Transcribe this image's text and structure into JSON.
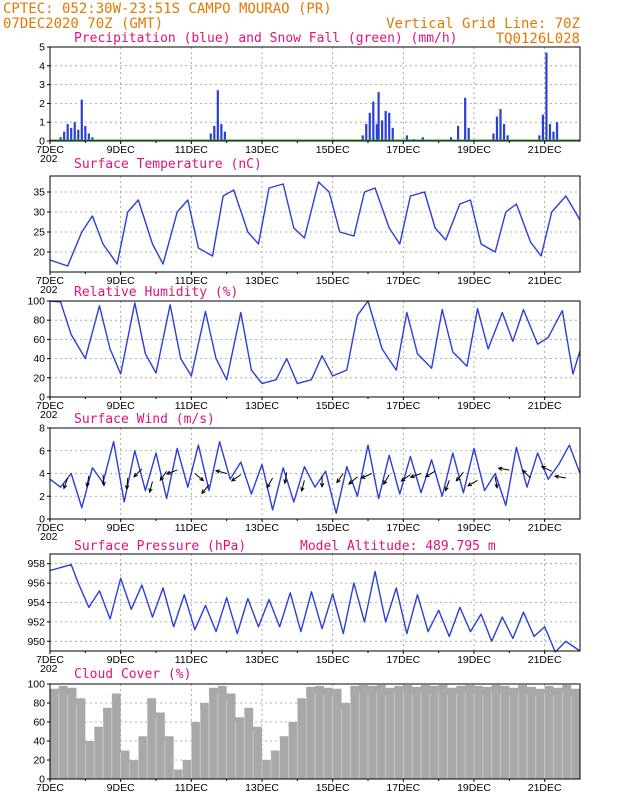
{
  "header": {
    "line1": "CPTEC:  052:30W-23:51S  CAMPO MOURAO (PR)",
    "line2": "07DEC2020 70Z (GMT)",
    "grid_note": "Vertical Grid Line: 70Z",
    "code": "TQ0126L028"
  },
  "x_axis": {
    "start_label": "7DEC",
    "labels": [
      "7DEC",
      "9DEC",
      "11DEC",
      "13DEC",
      "15DEC",
      "17DEC",
      "19DEC",
      "21DEC"
    ],
    "label_days": [
      0,
      2,
      4,
      6,
      8,
      10,
      12,
      14
    ],
    "range_days": [
      0,
      15
    ],
    "year_stub": "202"
  },
  "colors": {
    "line": "#2a3fd8",
    "precip": "#2a3fd8",
    "snow": "#22aa22",
    "cloud": "#a8a8a8",
    "title": "#e0127a",
    "header": "#e07a00",
    "grid": "#999999"
  },
  "chart_data": [
    {
      "id": "precip",
      "type": "bar",
      "title": "Precipitation (blue) and Snow Fall (green) (mm/h)",
      "ylim": [
        0,
        5
      ],
      "yticks": [
        0,
        1,
        2,
        3,
        4,
        5
      ],
      "bars": [
        [
          0.3,
          0.2
        ],
        [
          0.4,
          0.5
        ],
        [
          0.5,
          0.9
        ],
        [
          0.6,
          0.7
        ],
        [
          0.7,
          1.0
        ],
        [
          0.8,
          0.6
        ],
        [
          0.9,
          2.2
        ],
        [
          1.0,
          0.8
        ],
        [
          1.1,
          0.4
        ],
        [
          1.2,
          0.2
        ],
        [
          4.55,
          0.4
        ],
        [
          4.65,
          0.8
        ],
        [
          4.75,
          2.7
        ],
        [
          4.85,
          0.9
        ],
        [
          4.95,
          0.5
        ],
        [
          8.85,
          0.3
        ],
        [
          8.95,
          0.9
        ],
        [
          9.05,
          1.5
        ],
        [
          9.15,
          2.1
        ],
        [
          9.25,
          0.9
        ],
        [
          9.3,
          2.6
        ],
        [
          9.4,
          1.1
        ],
        [
          9.5,
          1.6
        ],
        [
          9.6,
          1.5
        ],
        [
          9.7,
          0.7
        ],
        [
          10.1,
          0.3
        ],
        [
          10.3,
          0.1
        ],
        [
          10.55,
          0.2
        ],
        [
          11.35,
          0.2
        ],
        [
          11.55,
          0.8
        ],
        [
          11.75,
          2.3
        ],
        [
          11.85,
          0.7
        ],
        [
          12.55,
          0.4
        ],
        [
          12.65,
          1.3
        ],
        [
          12.75,
          1.7
        ],
        [
          12.85,
          0.9
        ],
        [
          12.95,
          0.3
        ],
        [
          13.85,
          0.3
        ],
        [
          13.95,
          1.4
        ],
        [
          14.05,
          4.7
        ],
        [
          14.15,
          0.9
        ],
        [
          14.25,
          0.5
        ],
        [
          14.35,
          1.0
        ]
      ],
      "snow": []
    },
    {
      "id": "temp",
      "type": "line",
      "title": "Surface Temperature (nC)",
      "ylim": [
        15,
        39
      ],
      "yticks": [
        20,
        25,
        30,
        35
      ],
      "x": [
        0.0,
        0.5,
        0.9,
        1.2,
        1.5,
        1.9,
        2.2,
        2.5,
        2.9,
        3.2,
        3.6,
        3.9,
        4.2,
        4.6,
        4.9,
        5.2,
        5.6,
        5.9,
        6.2,
        6.6,
        6.9,
        7.2,
        7.6,
        7.9,
        8.2,
        8.6,
        8.9,
        9.2,
        9.6,
        9.9,
        10.2,
        10.6,
        10.9,
        11.2,
        11.6,
        11.9,
        12.2,
        12.6,
        12.9,
        13.2,
        13.6,
        13.9,
        14.2,
        14.6,
        15.0
      ],
      "y": [
        18,
        16.5,
        25,
        29,
        22,
        17,
        30,
        33,
        22,
        17,
        30,
        33,
        21,
        19,
        34,
        35.5,
        25,
        22,
        36,
        37,
        26,
        23.5,
        37.5,
        35,
        25,
        24,
        35,
        36,
        26,
        22,
        34,
        35,
        26,
        23,
        32,
        33,
        22,
        20,
        30,
        32,
        22.5,
        19,
        30,
        34,
        28
      ],
      "series_name": "temperature"
    },
    {
      "id": "rh",
      "type": "line",
      "title": "Relative Humidity (%)",
      "ylim": [
        0,
        100
      ],
      "yticks": [
        0,
        20,
        40,
        60,
        80,
        100
      ],
      "x": [
        0.0,
        0.3,
        0.6,
        1.0,
        1.4,
        1.7,
        2.0,
        2.4,
        2.7,
        3.0,
        3.4,
        3.7,
        4.0,
        4.4,
        4.7,
        5.0,
        5.4,
        5.7,
        6.0,
        6.4,
        6.7,
        7.0,
        7.4,
        7.7,
        8.0,
        8.4,
        8.7,
        9.0,
        9.4,
        9.8,
        10.1,
        10.4,
        10.8,
        11.1,
        11.4,
        11.8,
        12.1,
        12.4,
        12.8,
        13.1,
        13.4,
        13.8,
        14.1,
        14.5,
        14.8,
        15.0
      ],
      "y": [
        100,
        99,
        65,
        40,
        95,
        50,
        24,
        98,
        45,
        25,
        96,
        40,
        22,
        89,
        40,
        18,
        88,
        28,
        14,
        18,
        40,
        14,
        18,
        43,
        22,
        28,
        85,
        100,
        50,
        28,
        88,
        45,
        30,
        91,
        47,
        32,
        92,
        50,
        88,
        58,
        91,
        55,
        62,
        90,
        24,
        48
      ],
      "series_name": "relative humidity"
    },
    {
      "id": "wind",
      "type": "line",
      "title": "Surface Wind (m/s)",
      "ylim": [
        0,
        8
      ],
      "yticks": [
        0,
        2,
        4,
        6,
        8
      ],
      "x": [
        0.0,
        0.3,
        0.6,
        0.9,
        1.2,
        1.5,
        1.8,
        2.1,
        2.4,
        2.7,
        3.0,
        3.3,
        3.6,
        3.9,
        4.2,
        4.5,
        4.8,
        5.1,
        5.4,
        5.7,
        6.0,
        6.3,
        6.6,
        6.9,
        7.2,
        7.5,
        7.8,
        8.1,
        8.4,
        8.7,
        9.0,
        9.3,
        9.6,
        9.9,
        10.2,
        10.5,
        10.8,
        11.1,
        11.4,
        11.7,
        12.0,
        12.3,
        12.6,
        12.9,
        13.2,
        13.5,
        13.8,
        14.1,
        14.4,
        14.7,
        15.0
      ],
      "y": [
        3.5,
        2.8,
        4.0,
        1.0,
        4.5,
        3.2,
        6.8,
        1.5,
        6.0,
        2.5,
        5.8,
        1.8,
        6.2,
        2.8,
        6.5,
        2.5,
        6.8,
        3.5,
        5.0,
        2.2,
        4.8,
        0.8,
        4.5,
        1.5,
        4.6,
        2.8,
        4.2,
        0.5,
        4.6,
        2.0,
        6.5,
        1.8,
        5.6,
        2.2,
        5.5,
        2.3,
        5.2,
        2.0,
        5.8,
        2.3,
        6.2,
        2.5,
        4.0,
        1.2,
        6.3,
        2.8,
        5.8,
        3.5,
        4.8,
        6.5,
        4.0
      ],
      "arrows": [
        [
          0.5,
          3.6,
          250
        ],
        [
          1.1,
          3.8,
          260
        ],
        [
          1.5,
          3.9,
          275
        ],
        [
          2.2,
          3.6,
          265
        ],
        [
          2.6,
          4.4,
          225
        ],
        [
          2.9,
          3.3,
          255
        ],
        [
          3.3,
          4.2,
          235
        ],
        [
          3.6,
          4.3,
          200
        ],
        [
          4.1,
          4.0,
          320
        ],
        [
          4.5,
          3.0,
          230
        ],
        [
          5.0,
          4.0,
          165
        ],
        [
          5.4,
          3.9,
          215
        ],
        [
          6.3,
          3.6,
          240
        ],
        [
          6.7,
          4.1,
          260
        ],
        [
          7.2,
          3.4,
          255
        ],
        [
          7.7,
          3.8,
          270
        ],
        [
          8.3,
          4.0,
          235
        ],
        [
          8.7,
          3.7,
          220
        ],
        [
          9.1,
          4.0,
          205
        ],
        [
          9.6,
          3.9,
          240
        ],
        [
          10.2,
          3.9,
          215
        ],
        [
          10.5,
          4.0,
          200
        ],
        [
          10.9,
          4.2,
          210
        ],
        [
          11.3,
          3.4,
          250
        ],
        [
          11.7,
          4.1,
          230
        ],
        [
          12.1,
          3.4,
          210
        ],
        [
          12.6,
          3.7,
          280
        ],
        [
          13.0,
          4.3,
          170
        ],
        [
          13.6,
          3.6,
          135
        ],
        [
          14.2,
          4.2,
          155
        ],
        [
          14.6,
          3.6,
          170
        ]
      ],
      "series_name": "wind speed"
    },
    {
      "id": "pressure",
      "type": "line",
      "title": "Surface Pressure (hPa)",
      "annotation": "Model Altitude: 489.795 m",
      "ylim": [
        949,
        959
      ],
      "yticks": [
        950,
        952,
        954,
        956,
        958
      ],
      "x": [
        0.0,
        0.3,
        0.6,
        0.8,
        1.1,
        1.4,
        1.7,
        2.0,
        2.3,
        2.6,
        2.9,
        3.2,
        3.5,
        3.8,
        4.1,
        4.4,
        4.7,
        5.0,
        5.3,
        5.6,
        5.9,
        6.2,
        6.5,
        6.8,
        7.1,
        7.4,
        7.7,
        8.0,
        8.3,
        8.6,
        8.9,
        9.2,
        9.5,
        9.8,
        10.1,
        10.4,
        10.7,
        11.0,
        11.3,
        11.6,
        11.9,
        12.2,
        12.5,
        12.8,
        13.1,
        13.4,
        13.7,
        14.0,
        14.3,
        14.6,
        15.0
      ],
      "y": [
        957.3,
        957.6,
        957.9,
        956.0,
        953.5,
        955.2,
        952.3,
        956.5,
        953.3,
        955.8,
        952.5,
        955.5,
        951.5,
        954.8,
        951.2,
        953.7,
        951.0,
        954.5,
        950.8,
        954.4,
        951.5,
        954.3,
        951.5,
        955.0,
        951.0,
        955.1,
        951.3,
        954.9,
        950.8,
        956.0,
        952.0,
        957.2,
        952.0,
        955.5,
        950.8,
        954.8,
        951.0,
        953.2,
        950.5,
        953.5,
        951.0,
        952.8,
        950.0,
        952.5,
        950.3,
        953.0,
        950.5,
        951.5,
        948.9,
        950.0,
        949.0
      ],
      "series_name": "pressure"
    },
    {
      "id": "cloud",
      "type": "area",
      "title": "Cloud Cover (%)",
      "ylim": [
        0,
        100
      ],
      "yticks": [
        0,
        20,
        40,
        60,
        80,
        100
      ],
      "x": [
        0.0,
        0.25,
        0.5,
        0.75,
        1.0,
        1.25,
        1.5,
        1.75,
        2.0,
        2.25,
        2.5,
        2.75,
        3.0,
        3.25,
        3.5,
        3.75,
        4.0,
        4.25,
        4.5,
        4.75,
        5.0,
        5.25,
        5.5,
        5.75,
        6.0,
        6.25,
        6.5,
        6.75,
        7.0,
        7.25,
        7.5,
        7.75,
        8.0,
        8.25,
        8.5,
        8.75,
        9.0,
        9.25,
        9.5,
        9.75,
        10.0,
        10.25,
        10.5,
        10.75,
        11.0,
        11.25,
        11.5,
        11.75,
        12.0,
        12.25,
        12.5,
        12.75,
        13.0,
        13.25,
        13.5,
        13.75,
        14.0,
        14.25,
        14.5,
        14.75,
        15.0
      ],
      "y": [
        95,
        98,
        96,
        85,
        40,
        55,
        75,
        90,
        30,
        20,
        45,
        85,
        70,
        45,
        10,
        20,
        60,
        80,
        96,
        98,
        90,
        65,
        75,
        55,
        20,
        30,
        45,
        60,
        85,
        97,
        98,
        96,
        95,
        80,
        98,
        99,
        98,
        99,
        96,
        98,
        99,
        97,
        99,
        98,
        99,
        96,
        98,
        99,
        98,
        97,
        99,
        98,
        96,
        99,
        97,
        95,
        98,
        96,
        99,
        95,
        90
      ],
      "series_name": "cloud cover"
    }
  ]
}
